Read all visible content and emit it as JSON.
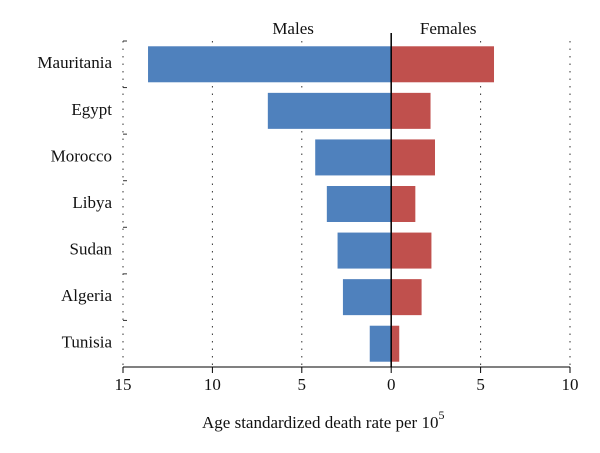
{
  "chart_data": {
    "type": "bar",
    "orientation": "horizontal",
    "categories": [
      "Mauritania",
      "Egypt",
      "Morocco",
      "Libya",
      "Sudan",
      "Algeria",
      "Tunisia"
    ],
    "series": [
      {
        "name": "Males",
        "color": "#4f81bd",
        "values": [
          -13.6,
          -6.9,
          -4.25,
          -3.6,
          -3.0,
          -2.7,
          -1.2
        ]
      },
      {
        "name": "Females",
        "color": "#c0504d",
        "values": [
          5.75,
          2.2,
          2.45,
          1.35,
          2.25,
          1.7,
          0.45
        ]
      }
    ],
    "xlim": [
      -15,
      10
    ],
    "xticks": [
      {
        "value": -15,
        "label": "15"
      },
      {
        "value": -10,
        "label": "10"
      },
      {
        "value": -5,
        "label": "5"
      },
      0,
      5,
      10
    ],
    "x_label": "Age standardized death rate per 10",
    "x_label_superscript": "5",
    "grid": true
  }
}
